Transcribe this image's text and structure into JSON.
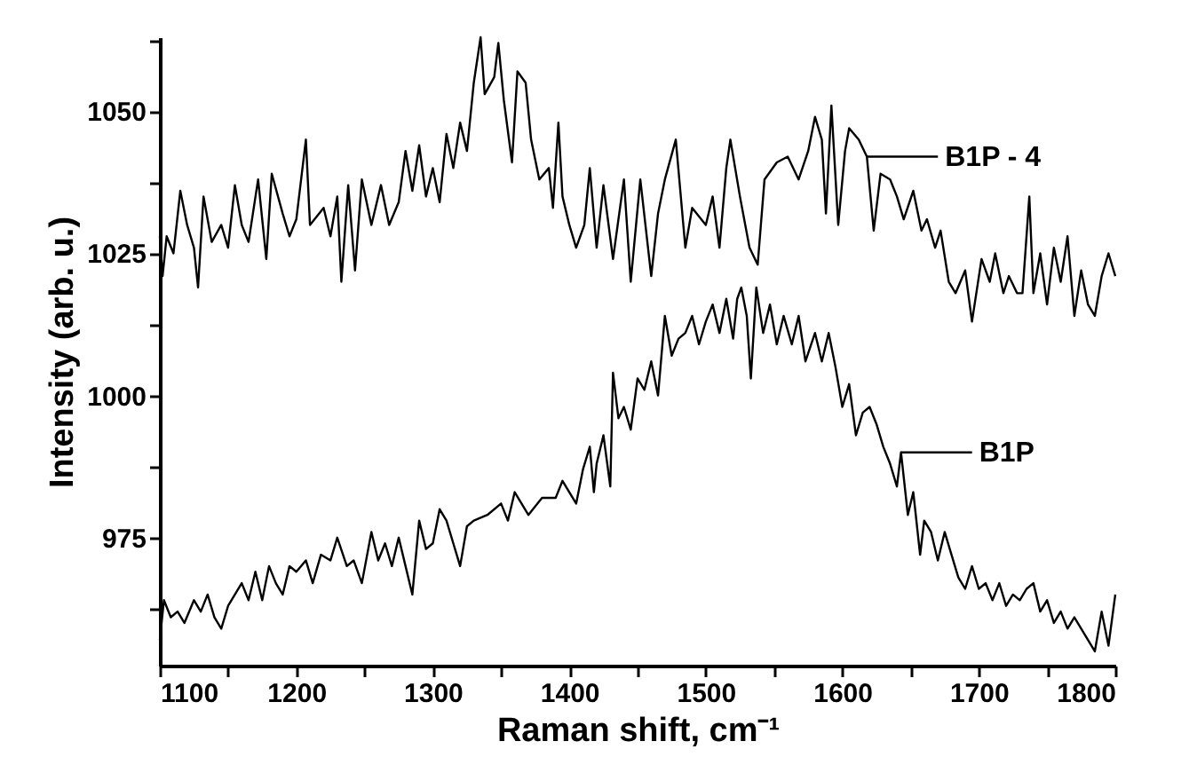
{
  "chart_data": {
    "type": "line",
    "xlabel": "Raman shift, cm⁻¹",
    "ylabel": "Intensity (arb. u.)",
    "xlim": [
      1100,
      1800
    ],
    "ylim": [
      952.5,
      1063
    ],
    "xticks": [
      1100,
      {
        "value": 1150,
        "label": null
      },
      1200,
      {
        "value": 1250,
        "label": null
      },
      1300,
      {
        "value": 1350,
        "label": null
      },
      1400,
      {
        "value": 1450,
        "label": null
      },
      1500,
      {
        "value": 1550,
        "label": null
      },
      1600,
      {
        "value": 1650,
        "label": null
      },
      1700,
      {
        "value": 1750,
        "label": null
      },
      1800
    ],
    "yticks": [
      {
        "value": 962.5,
        "label": null
      },
      975,
      {
        "value": 987.5,
        "label": null
      },
      1000,
      {
        "value": 1012.5,
        "label": null
      },
      1025,
      {
        "value": 1037.5,
        "label": null
      },
      1050,
      {
        "value": 1062.5,
        "label": null
      }
    ],
    "grid": false,
    "legend": false,
    "marker": "none",
    "line_style": "solid",
    "series": [
      {
        "color": "#000000",
        "x": [
          1100,
          1102,
          1105,
          1110,
          1115,
          1120,
          1125,
          1128,
          1132,
          1138,
          1145,
          1150,
          1155,
          1160,
          1165,
          1172,
          1178,
          1182,
          1190,
          1195,
          1200,
          1207,
          1210,
          1220,
          1225,
          1230,
          1233,
          1238,
          1243,
          1248,
          1255,
          1262,
          1268,
          1275,
          1280,
          1285,
          1290,
          1295,
          1300,
          1305,
          1310,
          1315,
          1320,
          1325,
          1330,
          1335,
          1338,
          1345,
          1348,
          1352,
          1358,
          1362,
          1368,
          1372,
          1378,
          1385,
          1388,
          1392,
          1395,
          1400,
          1405,
          1411,
          1415,
          1420,
          1425,
          1432,
          1440,
          1445,
          1452,
          1460,
          1465,
          1470,
          1478,
          1485,
          1490,
          1500,
          1505,
          1510,
          1515,
          1518,
          1525,
          1532,
          1538,
          1543,
          1552,
          1560,
          1568,
          1575,
          1580,
          1585,
          1588,
          1592,
          1597,
          1602,
          1605,
          1612,
          1618,
          1623,
          1628,
          1635,
          1640,
          1645,
          1652,
          1658,
          1662,
          1668,
          1672,
          1678,
          1683,
          1690,
          1695,
          1702,
          1708,
          1712,
          1718,
          1722,
          1728,
          1732,
          1737,
          1740,
          1745,
          1750,
          1755,
          1760,
          1765,
          1770,
          1775,
          1780,
          1785,
          1790,
          1795,
          1800
        ],
        "values": [
          1028,
          1021,
          1028,
          1025,
          1036,
          1030,
          1026,
          1019,
          1035,
          1027,
          1030,
          1026,
          1037,
          1030,
          1027,
          1038,
          1024,
          1039,
          1032,
          1028,
          1031,
          1045,
          1030,
          1033,
          1028,
          1035,
          1020,
          1037,
          1022,
          1038,
          1030,
          1037,
          1030,
          1034,
          1043,
          1036,
          1044,
          1035,
          1040,
          1034,
          1046,
          1040,
          1048,
          1043,
          1055,
          1063,
          1053,
          1056,
          1062,
          1052,
          1041,
          1057,
          1055,
          1045,
          1038,
          1040,
          1033,
          1048,
          1035,
          1030,
          1026,
          1030,
          1040,
          1026,
          1037,
          1024,
          1038,
          1020,
          1038,
          1021,
          1032,
          1038,
          1045,
          1026,
          1033,
          1030,
          1035,
          1026,
          1040,
          1045,
          1035,
          1026,
          1023,
          1038,
          1041,
          1042,
          1038,
          1043,
          1049,
          1045,
          1032,
          1051,
          1030,
          1043,
          1047,
          1045,
          1042,
          1029,
          1039,
          1038,
          1035,
          1031,
          1036,
          1029,
          1031,
          1026,
          1029,
          1020,
          1018,
          1022,
          1013,
          1024,
          1020,
          1025,
          1018,
          1021,
          1018,
          1018,
          1035,
          1018,
          1025,
          1016,
          1026,
          1020,
          1028,
          1014,
          1022,
          1016,
          1014,
          1021,
          1025,
          1021
        ]
      },
      {
        "color": "#000000",
        "x": [
          1100,
          1103,
          1108,
          1113,
          1118,
          1125,
          1130,
          1135,
          1140,
          1145,
          1150,
          1160,
          1165,
          1170,
          1175,
          1180,
          1185,
          1190,
          1195,
          1200,
          1207,
          1212,
          1218,
          1225,
          1230,
          1237,
          1242,
          1248,
          1255,
          1260,
          1265,
          1270,
          1275,
          1280,
          1285,
          1290,
          1295,
          1300,
          1305,
          1310,
          1315,
          1320,
          1325,
          1330,
          1340,
          1350,
          1355,
          1360,
          1370,
          1380,
          1390,
          1395,
          1400,
          1405,
          1410,
          1415,
          1418,
          1420,
          1425,
          1430,
          1432,
          1436,
          1440,
          1445,
          1450,
          1455,
          1460,
          1465,
          1470,
          1475,
          1480,
          1485,
          1490,
          1495,
          1500,
          1505,
          1510,
          1515,
          1520,
          1523,
          1526,
          1530,
          1533,
          1537,
          1542,
          1547,
          1552,
          1557,
          1563,
          1568,
          1573,
          1580,
          1585,
          1590,
          1595,
          1600,
          1605,
          1610,
          1615,
          1620,
          1625,
          1630,
          1635,
          1640,
          1643,
          1648,
          1652,
          1657,
          1660,
          1665,
          1670,
          1675,
          1680,
          1685,
          1690,
          1695,
          1700,
          1705,
          1710,
          1715,
          1720,
          1725,
          1730,
          1735,
          1740,
          1745,
          1750,
          1755,
          1760,
          1765,
          1770,
          1775,
          1780,
          1785,
          1790,
          1795,
          1800
        ],
        "values": [
          957,
          964,
          961,
          962,
          960,
          964,
          962,
          965,
          961,
          959,
          963,
          967,
          964,
          969,
          964,
          970,
          967,
          965,
          970,
          969,
          971,
          967,
          972,
          971,
          975,
          970,
          971,
          967,
          976,
          971,
          974,
          970,
          975,
          970,
          965,
          978,
          973,
          974,
          980,
          978,
          974,
          970,
          977,
          978,
          979,
          981,
          978,
          983,
          979,
          982,
          982,
          985,
          983,
          981,
          987,
          991,
          983,
          988,
          993,
          984,
          1004,
          996,
          998,
          994,
          1003,
          1001,
          1006,
          1000,
          1014,
          1007,
          1010,
          1011,
          1014,
          1009,
          1013,
          1016,
          1011,
          1017,
          1010,
          1017,
          1019,
          1014,
          1003,
          1019,
          1011,
          1016,
          1009,
          1014,
          1009,
          1014,
          1006,
          1011,
          1006,
          1011,
          1005,
          998,
          1002,
          993,
          997,
          998,
          995,
          991,
          988,
          984,
          990,
          979,
          983,
          972,
          978,
          976,
          971,
          976,
          972,
          968,
          966,
          970,
          966,
          967,
          964,
          967,
          963,
          965,
          964,
          966,
          967,
          962,
          964,
          960,
          962,
          959,
          961,
          959,
          957,
          955,
          962,
          956,
          965
        ]
      }
    ],
    "annotations": [
      {
        "text": "B1P - 4",
        "x": 1618,
        "y": 1042
      },
      {
        "text": "B1P",
        "x": 1643,
        "y": 990
      }
    ]
  }
}
